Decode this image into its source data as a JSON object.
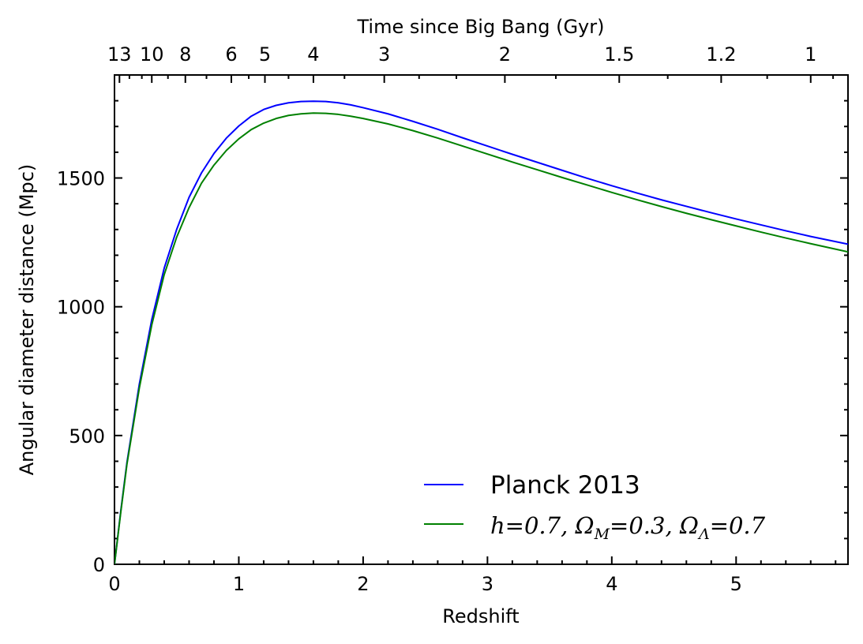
{
  "chart_data": {
    "type": "line",
    "xlabel": "Redshift",
    "ylabel": "Angular diameter distance (Mpc)",
    "top_xlabel": "Time since Big Bang (Gyr)",
    "xlim": [
      0,
      5.9
    ],
    "ylim": [
      0,
      1900
    ],
    "x_ticks": [
      0,
      1,
      2,
      3,
      4,
      5
    ],
    "x_tick_labels": [
      "0",
      "1",
      "2",
      "3",
      "4",
      "5"
    ],
    "x_minor_step": 0.2,
    "y_ticks": [
      0,
      500,
      1000,
      1500
    ],
    "y_tick_labels": [
      "0",
      "500",
      "1000",
      "1500"
    ],
    "y_minor_step": 100,
    "top_ticks": [
      {
        "label": "13",
        "z": 0.04
      },
      {
        "label": "10",
        "z": 0.3
      },
      {
        "label": "8",
        "z": 0.57
      },
      {
        "label": "6",
        "z": 0.94
      },
      {
        "label": "5",
        "z": 1.21
      },
      {
        "label": "4",
        "z": 1.6
      },
      {
        "label": "3",
        "z": 2.17
      },
      {
        "label": "2",
        "z": 3.14
      },
      {
        "label": "1.5",
        "z": 4.06
      },
      {
        "label": "1.2",
        "z": 4.88
      },
      {
        "label": "1",
        "z": 5.6
      }
    ],
    "top_minor_ticks_z": [
      0.12,
      0.22,
      0.43,
      0.74,
      1.08,
      1.4,
      1.85,
      2.45,
      2.75,
      3.55,
      4.45,
      5.25,
      5.78
    ],
    "grid": false,
    "legend_position": "lower-right",
    "series": [
      {
        "name": "Planck 2013",
        "color": "#0000ff",
        "x": [
          0,
          0.05,
          0.1,
          0.2,
          0.3,
          0.4,
          0.5,
          0.6,
          0.7,
          0.8,
          0.9,
          1.0,
          1.1,
          1.2,
          1.3,
          1.4,
          1.5,
          1.6,
          1.7,
          1.8,
          1.9,
          2.0,
          2.2,
          2.4,
          2.6,
          2.8,
          3.0,
          3.2,
          3.4,
          3.6,
          3.8,
          4.0,
          4.2,
          4.4,
          4.6,
          4.8,
          5.0,
          5.2,
          5.4,
          5.6,
          5.9
        ],
        "y": [
          0,
          205,
          395,
          700,
          950,
          1150,
          1300,
          1425,
          1520,
          1595,
          1655,
          1702,
          1740,
          1766,
          1782,
          1792,
          1797,
          1798,
          1797,
          1792,
          1784,
          1773,
          1749,
          1720,
          1689,
          1656,
          1624,
          1592,
          1561,
          1530,
          1499,
          1470,
          1442,
          1415,
          1390,
          1365,
          1341,
          1318,
          1295,
          1273,
          1243
        ]
      },
      {
        "name": "$h = 0.7,\\ \\Omega_M = 0.3,\\ \\Omega_\\Lambda = 0.7$",
        "color": "#008000",
        "x": [
          0,
          0.05,
          0.1,
          0.2,
          0.3,
          0.4,
          0.5,
          0.6,
          0.7,
          0.8,
          0.9,
          1.0,
          1.1,
          1.2,
          1.3,
          1.4,
          1.5,
          1.6,
          1.7,
          1.8,
          1.9,
          2.0,
          2.2,
          2.4,
          2.6,
          2.8,
          3.0,
          3.2,
          3.4,
          3.6,
          3.8,
          4.0,
          4.2,
          4.4,
          4.6,
          4.8,
          5.0,
          5.2,
          5.4,
          5.6,
          5.9
        ],
        "y": [
          0,
          200,
          388,
          685,
          930,
          1125,
          1270,
          1385,
          1480,
          1550,
          1607,
          1652,
          1688,
          1713,
          1731,
          1743,
          1749,
          1752,
          1751,
          1747,
          1740,
          1731,
          1710,
          1684,
          1655,
          1624,
          1593,
          1562,
          1532,
          1502,
          1473,
          1444,
          1416,
          1389,
          1363,
          1338,
          1314,
          1290,
          1267,
          1245,
          1213
        ]
      }
    ]
  }
}
